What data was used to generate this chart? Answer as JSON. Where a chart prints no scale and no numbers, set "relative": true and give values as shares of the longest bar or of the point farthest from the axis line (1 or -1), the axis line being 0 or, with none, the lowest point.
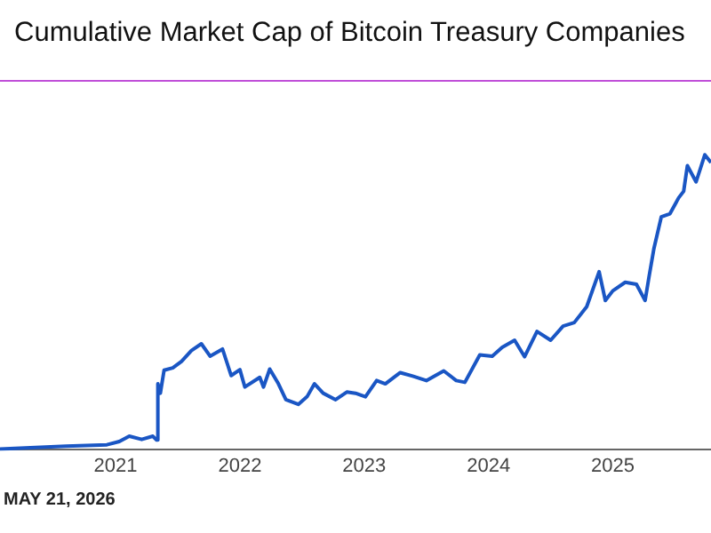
{
  "chart_data": {
    "type": "line",
    "title": "Cumulative Market Cap of Bitcoin Treasury Companies",
    "relative": true,
    "x": [
      2020.07,
      2020.6,
      2020.93,
      2021.03,
      2021.11,
      2021.21,
      2021.3,
      2021.33,
      2021.34,
      2021.36,
      2021.39,
      2021.46,
      2021.53,
      2021.61,
      2021.69,
      2021.76,
      2021.86,
      2021.93,
      2022.0,
      2022.04,
      2022.16,
      2022.19,
      2022.24,
      2022.31,
      2022.37,
      2022.47,
      2022.54,
      2022.6,
      2022.67,
      2022.77,
      2022.86,
      2022.93,
      2023.01,
      2023.1,
      2023.17,
      2023.29,
      2023.39,
      2023.5,
      2023.64,
      2023.74,
      2023.81,
      2023.93,
      2024.03,
      2024.11,
      2024.21,
      2024.29,
      2024.39,
      2024.5,
      2024.6,
      2024.69,
      2024.79,
      2024.89,
      2024.94,
      2025.0,
      2025.1,
      2025.19,
      2025.26,
      2025.29,
      2025.33,
      2025.39,
      2025.46,
      2025.53,
      2025.57,
      2025.6,
      2025.67,
      2025.74,
      2025.79
    ],
    "series": [
      {
        "color": "#1a56c4",
        "values": [
          0.0,
          0.01,
          0.015,
          0.026,
          0.044,
          0.033,
          0.044,
          0.031,
          0.222,
          0.19,
          0.268,
          0.276,
          0.298,
          0.335,
          0.358,
          0.316,
          0.34,
          0.25,
          0.27,
          0.211,
          0.244,
          0.211,
          0.272,
          0.222,
          0.168,
          0.152,
          0.178,
          0.222,
          0.19,
          0.168,
          0.194,
          0.19,
          0.178,
          0.233,
          0.222,
          0.26,
          0.248,
          0.233,
          0.266,
          0.233,
          0.227,
          0.32,
          0.316,
          0.346,
          0.37,
          0.314,
          0.4,
          0.37,
          0.418,
          0.43,
          0.484,
          0.603,
          0.505,
          0.538,
          0.567,
          0.56,
          0.505,
          0.582,
          0.68,
          0.789,
          0.8,
          0.854,
          0.876,
          0.963,
          0.908,
          1.0,
          0.974
        ]
      }
    ],
    "xlim": [
      2020.07,
      2025.79
    ],
    "xticks": [
      2021,
      2022,
      2023,
      2024,
      2025
    ],
    "annotations": [
      "MAY 21, 2026"
    ],
    "marker": "none",
    "line_style": "solid",
    "legend": false
  }
}
